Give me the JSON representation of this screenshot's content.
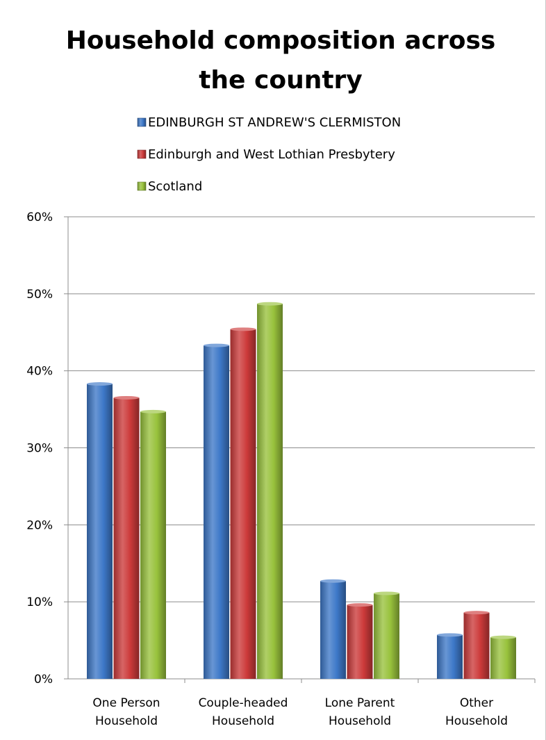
{
  "chart_data": {
    "type": "bar",
    "title": [
      "Household composition across",
      "the country"
    ],
    "categories": [
      [
        "One Person",
        "Household"
      ],
      [
        "Couple-headed",
        "Household"
      ],
      [
        "Lone Parent",
        "Household"
      ],
      [
        "Other",
        "Household"
      ]
    ],
    "series": [
      {
        "name": "EDINBURGH ST ANDREW'S CLERMISTON",
        "color": "#3d78c8",
        "values": [
          38.3,
          43.3,
          12.7,
          5.7
        ]
      },
      {
        "name": "Edinburgh and West Lothian Presbytery",
        "color": "#cc3a3a",
        "values": [
          36.5,
          45.4,
          9.6,
          8.6
        ]
      },
      {
        "name": "Scotland",
        "color": "#98c23c",
        "values": [
          34.7,
          48.7,
          11.1,
          5.4
        ]
      }
    ],
    "ylim": [
      0,
      60
    ],
    "yticks": [
      "0%",
      "10%",
      "20%",
      "30%",
      "40%",
      "50%",
      "60%"
    ],
    "grid": true,
    "legend_position": "top"
  }
}
